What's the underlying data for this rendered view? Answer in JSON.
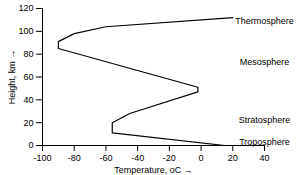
{
  "chart_data": {
    "type": "line",
    "x_label": "Temperature, oC",
    "y_label": "Height, km",
    "x": [
      15,
      -56,
      -56,
      -45,
      -2,
      -2,
      -90,
      -90,
      -80,
      -60,
      20
    ],
    "values": [
      0,
      11,
      20,
      28,
      47,
      51,
      85,
      91,
      98,
      104,
      112
    ],
    "color": "#000000",
    "xlim": [
      -100,
      40
    ],
    "xticks": [
      -100,
      -80,
      -60,
      -40,
      -20,
      0,
      20,
      40
    ],
    "ylim": [
      0,
      120
    ],
    "yticks": [
      0,
      20,
      40,
      60,
      80,
      100,
      120
    ],
    "grid": false,
    "annotations": [
      {
        "text": "Thermosphere",
        "x": 40,
        "y": 109
      },
      {
        "text": "Mesosphere",
        "x": 40,
        "y": 73
      },
      {
        "text": "Stratosphere",
        "x": 40,
        "y": 22
      },
      {
        "text": "Troposphere",
        "x": 40,
        "y": 3
      }
    ]
  }
}
